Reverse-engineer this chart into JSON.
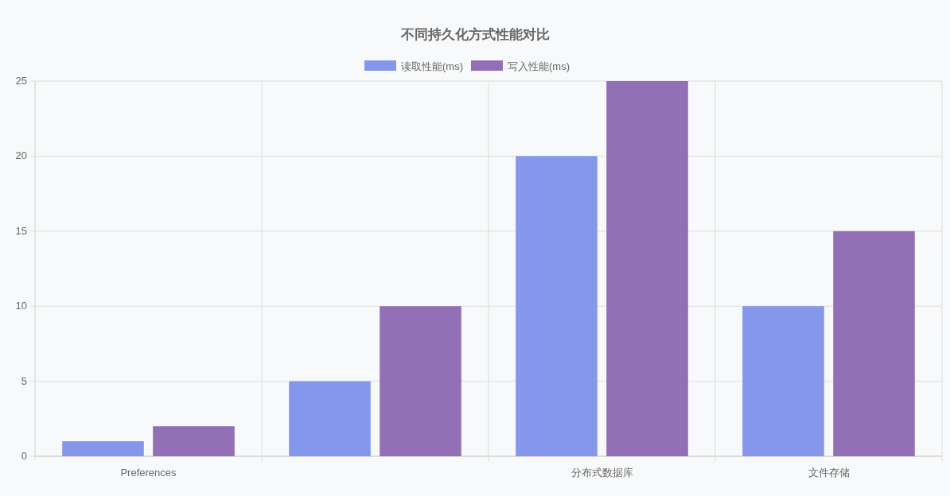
{
  "chart_data": {
    "type": "bar",
    "title": "不同持久化方式性能对比",
    "categories": [
      "Preferences",
      null,
      "分布式数据库",
      "文件存储"
    ],
    "series": [
      {
        "name": "读取性能(ms)",
        "color": "#8597eb",
        "values": [
          1,
          5,
          20,
          10
        ]
      },
      {
        "name": "写入性能(ms)",
        "color": "#9370b5",
        "values": [
          2,
          10,
          25,
          15
        ]
      }
    ],
    "ylim": [
      0,
      25
    ],
    "yticks": [
      0,
      5,
      10,
      15,
      20,
      25
    ],
    "grid": true,
    "legend": "top"
  }
}
